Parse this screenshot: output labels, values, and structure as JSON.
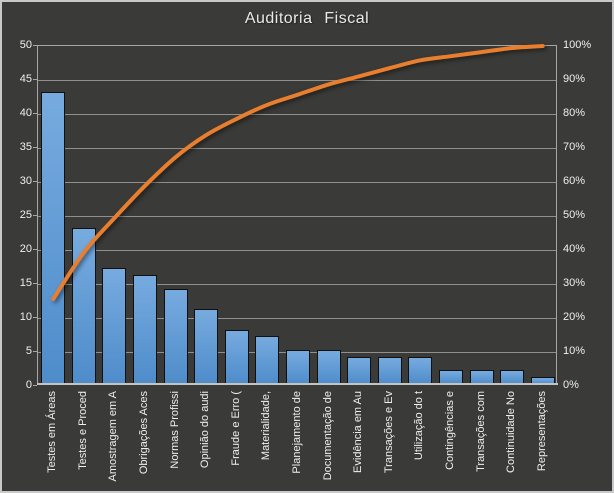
{
  "chart_data": {
    "type": "bar",
    "subtype": "pareto",
    "title": "Auditoria Fiscal",
    "legend": "none",
    "grid": "horizontal",
    "categories": [
      "Testes em Áreas",
      "Testes e Proced",
      "Amostragem em A",
      "Obrigações Aces",
      "Normas Profissi",
      "Opinião do audi",
      "Fraude e Erro (",
      "Materialidade,",
      "Planejamento de",
      "Documentação de",
      "Evidência em Au",
      "Transações e Ev",
      "Utilização do t",
      "Contingências e",
      "Transações com",
      "Continuidade No",
      "Representações"
    ],
    "series": [
      {
        "name": "bars",
        "type": "bar",
        "axis": "left",
        "values": [
          43,
          23,
          17,
          16,
          14,
          11,
          8,
          7,
          5,
          5,
          4,
          4,
          4,
          2,
          2,
          2,
          1
        ]
      },
      {
        "name": "cumulative_percent",
        "type": "line",
        "axis": "right",
        "smooth": true,
        "values": [
          25.6,
          39.3,
          49.4,
          58.9,
          67.3,
          73.8,
          78.6,
          82.7,
          85.7,
          88.7,
          91.1,
          93.5,
          95.8,
          97.0,
          98.2,
          99.4,
          100.0
        ]
      }
    ],
    "left_axis": {
      "min": 0,
      "max": 50,
      "step": 5,
      "tick_labels": [
        "0",
        "5",
        "10",
        "15",
        "20",
        "25",
        "30",
        "35",
        "40",
        "45",
        "50"
      ]
    },
    "right_axis": {
      "min": 0,
      "max": 100,
      "step": 10,
      "tick_labels": [
        "0%",
        "10%",
        "20%",
        "30%",
        "40%",
        "50%",
        "60%",
        "70%",
        "80%",
        "90%",
        "100%"
      ]
    }
  },
  "colors": {
    "background": "#3a3a38",
    "frame_border": "#c9c9c9",
    "gridline": "#8f8f8d",
    "axis_line": "#a6a6a4",
    "bar_fill_top": "#77abdf",
    "bar_fill_bottom": "#4e8cca",
    "bar_border": "#101010",
    "cumulative_line": "#e87e2e",
    "axis_text": "#efefef",
    "title_text": "#eaeaea"
  }
}
